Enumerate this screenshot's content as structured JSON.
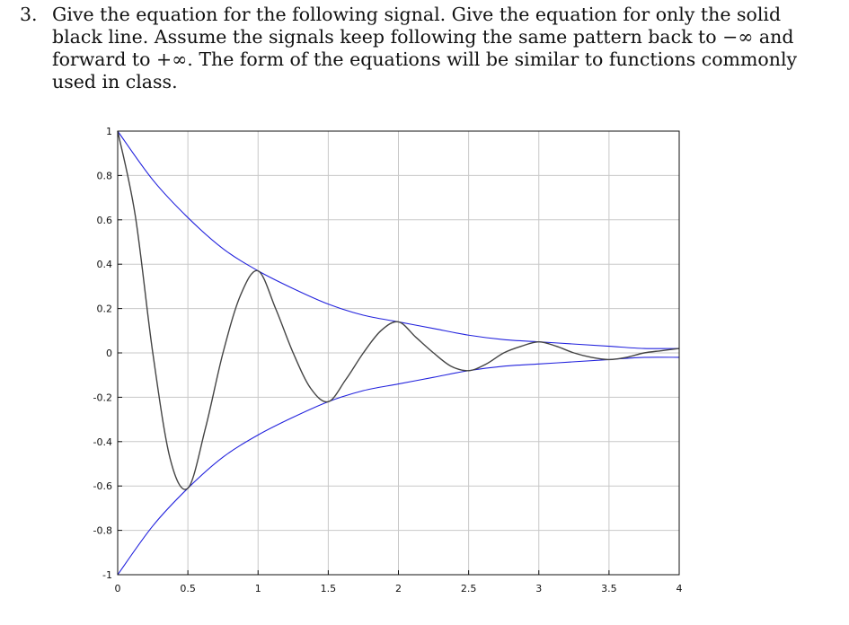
{
  "question": {
    "number": "3.",
    "text": "Give the equation for the following signal. Give the equation for only the solid black line. Assume the signals keep following the same pattern back to −∞ and forward to +∞. The form of the equations will be similar to functions commonly used in class."
  },
  "chart_data": {
    "type": "line",
    "title": "",
    "xlabel": "",
    "ylabel": "",
    "xlim": [
      0,
      4
    ],
    "ylim": [
      -1,
      1
    ],
    "grid": true,
    "legend": "none",
    "xticks": [
      "0",
      "0.5",
      "1",
      "1.5",
      "2",
      "2.5",
      "3",
      "3.5",
      "4"
    ],
    "xtick_values": [
      0,
      0.5,
      1,
      1.5,
      2,
      2.5,
      3,
      3.5,
      4
    ],
    "yticks": [
      "-1",
      "-0.8",
      "-0.6",
      "-0.4",
      "-0.2",
      "0",
      "0.2",
      "0.4",
      "0.6",
      "0.8",
      "1"
    ],
    "ytick_values": [
      -1,
      -0.8,
      -0.6,
      -0.4,
      -0.2,
      0,
      0.2,
      0.4,
      0.6,
      0.8,
      1
    ],
    "series": [
      {
        "color": "#2222dd",
        "x": [
          0,
          0.25,
          0.5,
          0.75,
          1,
          1.25,
          1.5,
          1.75,
          2,
          2.25,
          2.5,
          2.75,
          3,
          3.25,
          3.5,
          3.75,
          4
        ],
        "values": [
          1,
          0.78,
          0.61,
          0.47,
          0.37,
          0.29,
          0.22,
          0.17,
          0.14,
          0.11,
          0.08,
          0.06,
          0.05,
          0.04,
          0.03,
          0.02,
          0.02
        ]
      },
      {
        "color": "#2222dd",
        "x": [
          0,
          0.25,
          0.5,
          0.75,
          1,
          1.25,
          1.5,
          1.75,
          2,
          2.25,
          2.5,
          2.75,
          3,
          3.25,
          3.5,
          3.75,
          4
        ],
        "values": [
          -1,
          -0.78,
          -0.61,
          -0.47,
          -0.37,
          -0.29,
          -0.22,
          -0.17,
          -0.14,
          -0.11,
          -0.08,
          -0.06,
          -0.05,
          -0.04,
          -0.03,
          -0.02,
          -0.02
        ]
      },
      {
        "color": "#444444",
        "x": [
          0,
          0.125,
          0.25,
          0.375,
          0.5,
          0.625,
          0.75,
          0.875,
          1,
          1.125,
          1.25,
          1.375,
          1.5,
          1.625,
          1.75,
          1.875,
          2,
          2.125,
          2.25,
          2.375,
          2.5,
          2.625,
          2.75,
          2.875,
          3,
          3.125,
          3.25,
          3.375,
          3.5,
          3.625,
          3.75,
          3.875,
          4
        ],
        "values": [
          1,
          0.62,
          0.0,
          -0.48,
          -0.61,
          -0.34,
          0.0,
          0.26,
          0.37,
          0.2,
          0.0,
          -0.16,
          -0.22,
          -0.12,
          0.0,
          0.1,
          0.14,
          0.07,
          0.0,
          -0.06,
          -0.08,
          -0.05,
          0.0,
          0.03,
          0.05,
          0.03,
          0.0,
          -0.02,
          -0.03,
          -0.02,
          0.0,
          0.01,
          0.02
        ]
      }
    ]
  }
}
